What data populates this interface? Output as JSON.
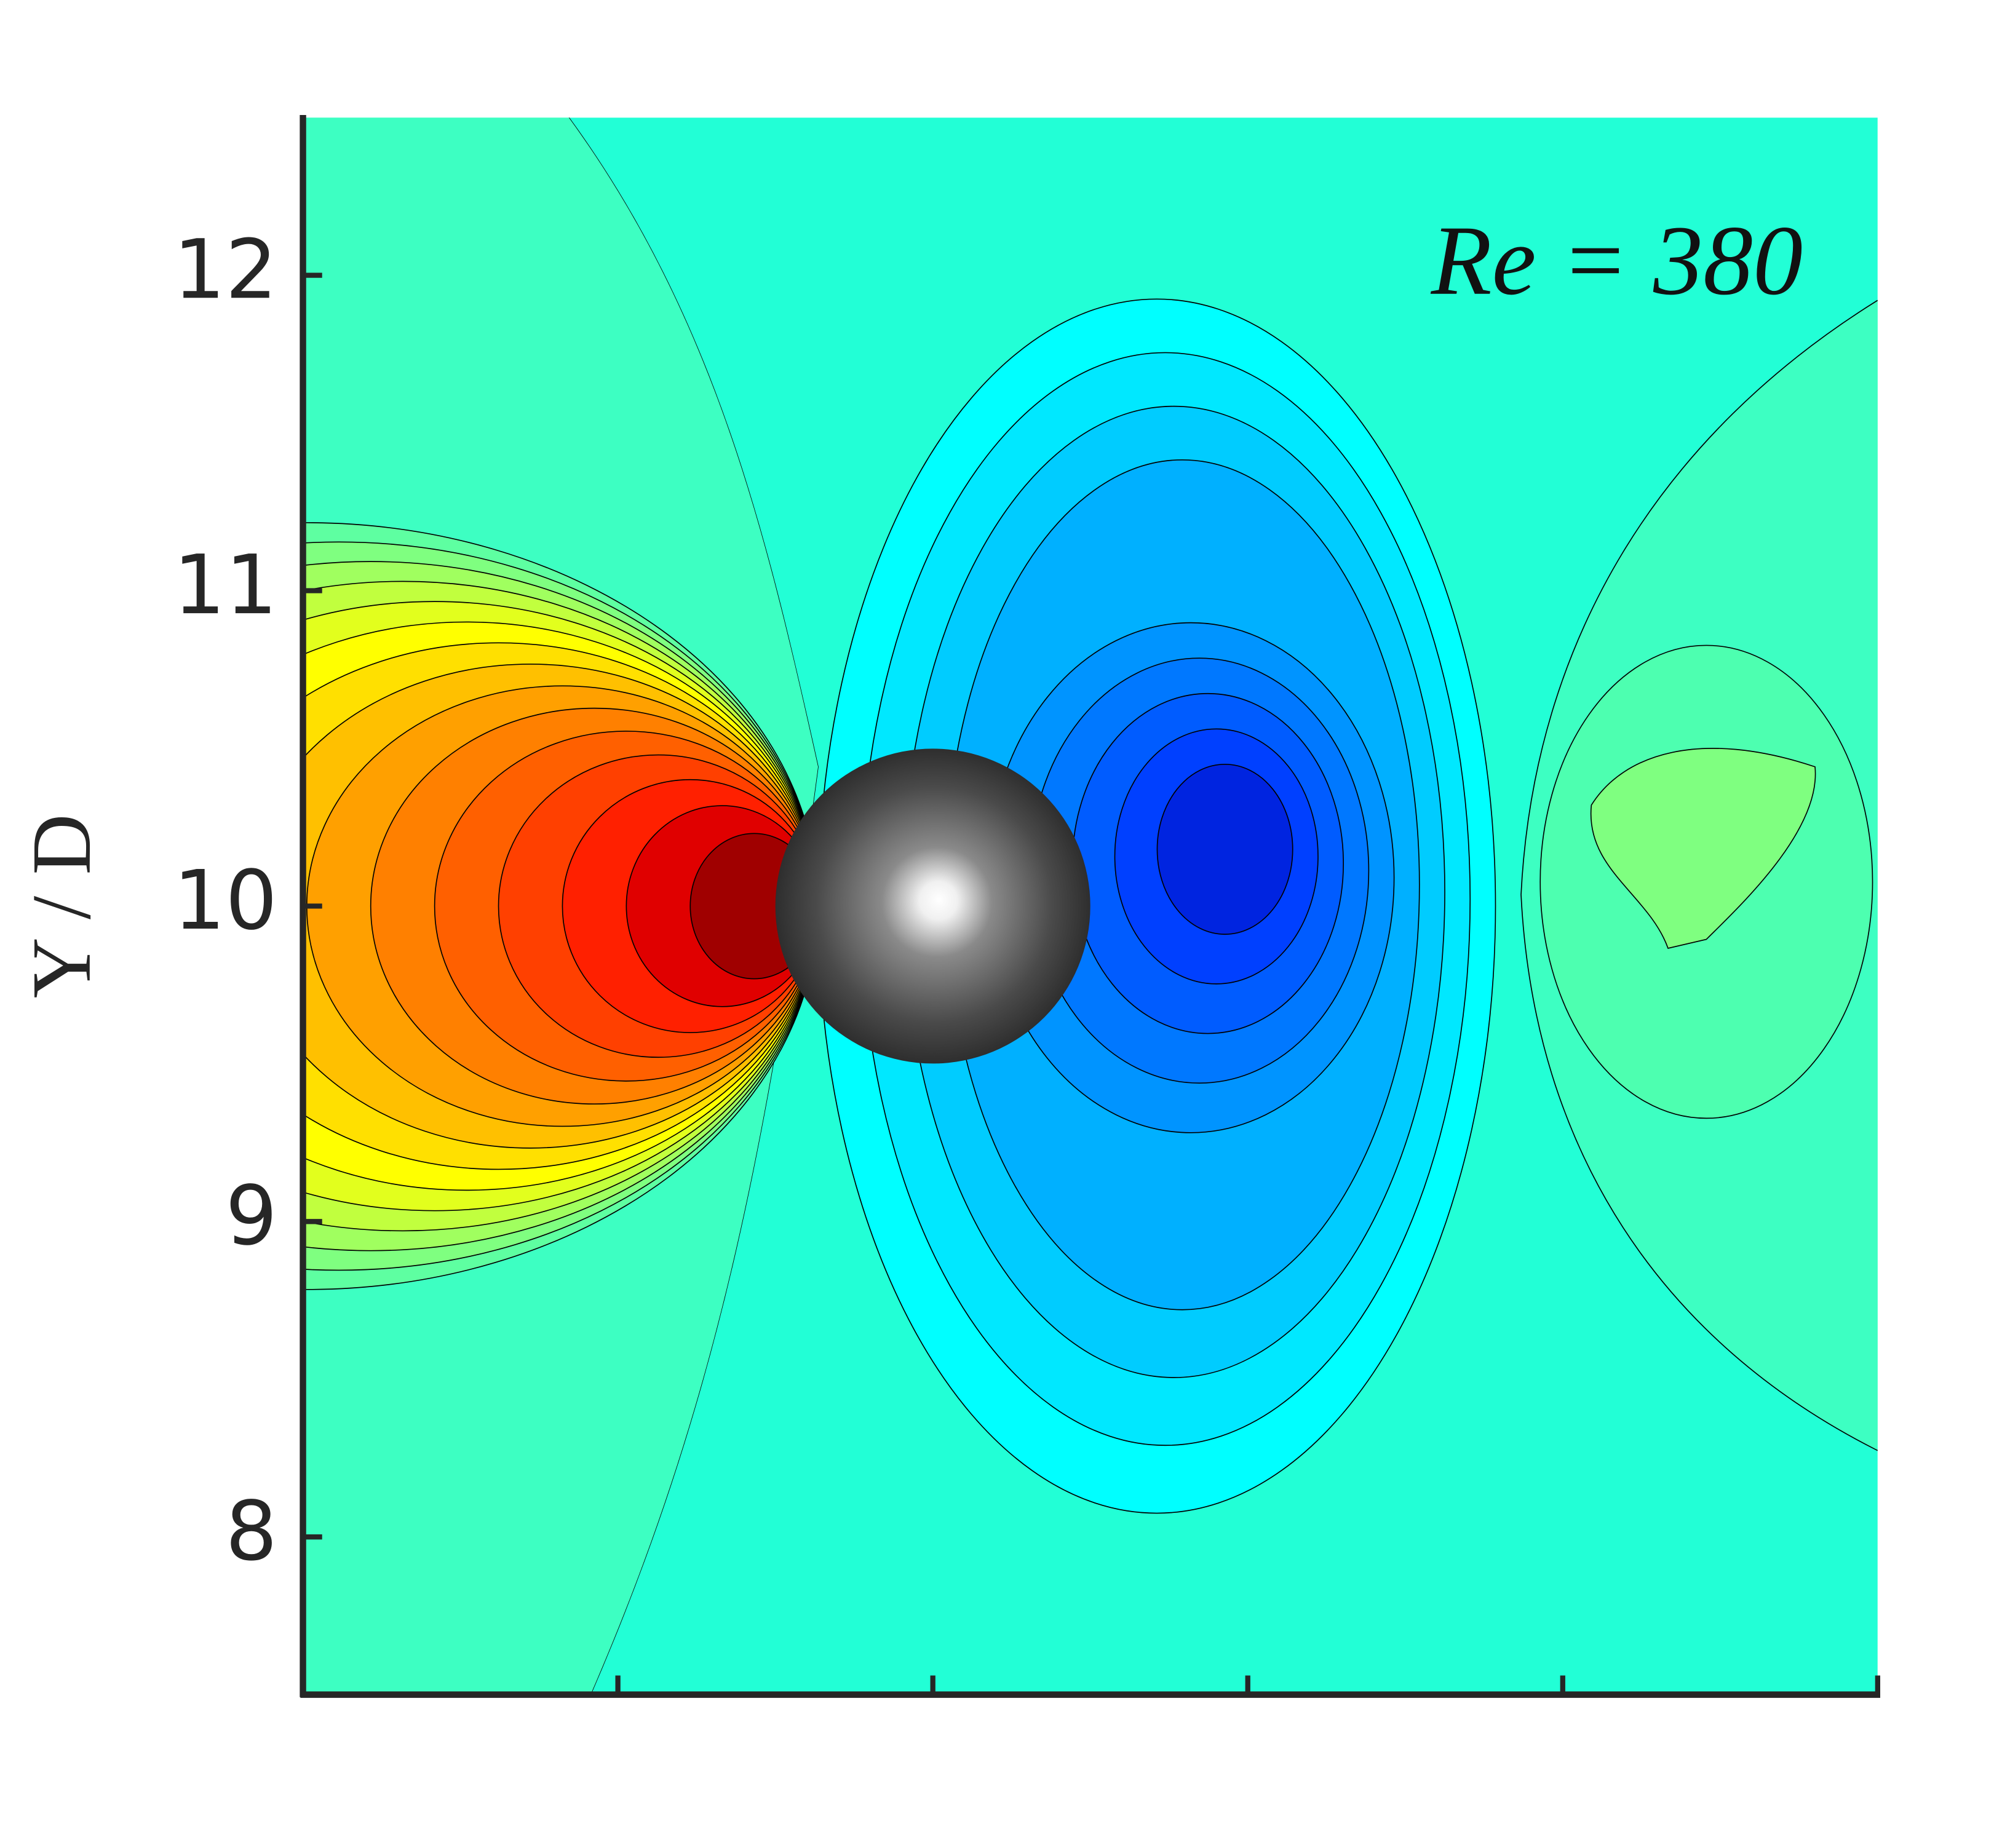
{
  "chart_data": {
    "type": "contour",
    "annotation": "Re = 380",
    "ylabel": "Y / D",
    "ylim": [
      7.5,
      12.5
    ],
    "yticks": [
      8,
      9,
      10,
      11,
      12
    ],
    "xlim": [
      8,
      13
    ],
    "xticks": [
      {
        "value": 9,
        "label": null
      },
      {
        "value": 10,
        "label": null
      },
      {
        "value": 11,
        "label": null
      },
      {
        "value": 12,
        "label": null
      },
      {
        "value": 13,
        "label": null
      }
    ],
    "sphere": {
      "x": 10,
      "y": 10,
      "diameter": 1
    }
  }
}
